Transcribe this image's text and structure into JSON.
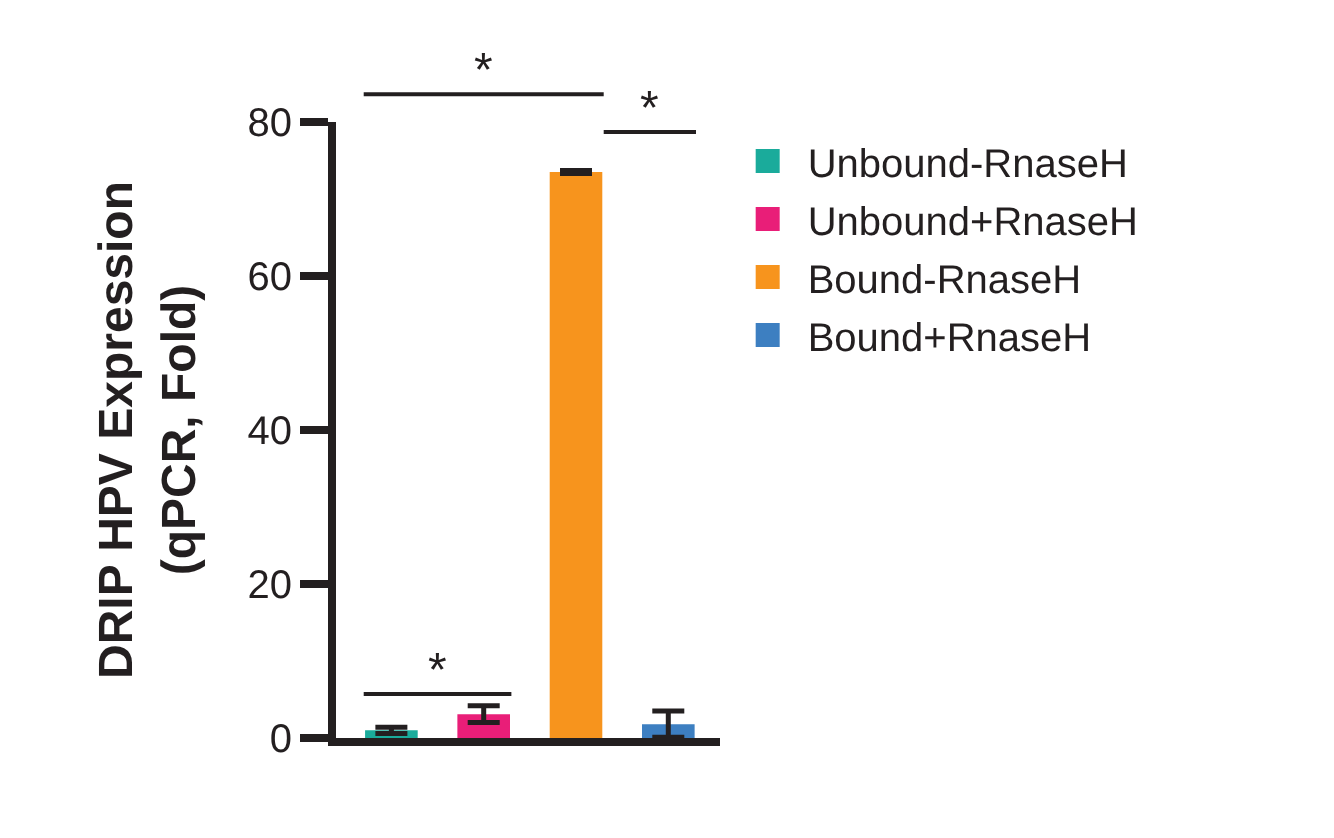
{
  "chart_data": {
    "type": "bar",
    "ylabel": "DRIP HPV Expression\n(qPCR, Fold)",
    "categories": [
      null,
      null,
      null,
      null
    ],
    "series": [
      {
        "name": "Unbound-RnaseH",
        "color": "#1aab9b",
        "values": [
          1.0,
          null,
          null,
          null
        ],
        "errors": [
          0.4,
          null,
          null,
          null
        ]
      },
      {
        "name": "Unbound+RnaseH",
        "color": "#e91e78",
        "values": [
          null,
          3.1,
          null,
          null
        ],
        "errors": [
          null,
          1.1,
          null,
          null
        ]
      },
      {
        "name": "Bound-RnaseH",
        "color": "#f7941d",
        "values": [
          null,
          null,
          73.5,
          null
        ],
        "errors": [
          null,
          null,
          0.2,
          null
        ]
      },
      {
        "name": "Bound+RnaseH",
        "color": "#3d7fc1",
        "values": [
          null,
          null,
          null,
          1.8
        ],
        "errors": [
          null,
          null,
          null,
          1.7
        ]
      }
    ],
    "ylim": [
      0,
      80
    ],
    "yticks": [
      0,
      20,
      40,
      60,
      80
    ],
    "legend": "right",
    "annotations": [
      "*",
      "*",
      "*"
    ]
  }
}
